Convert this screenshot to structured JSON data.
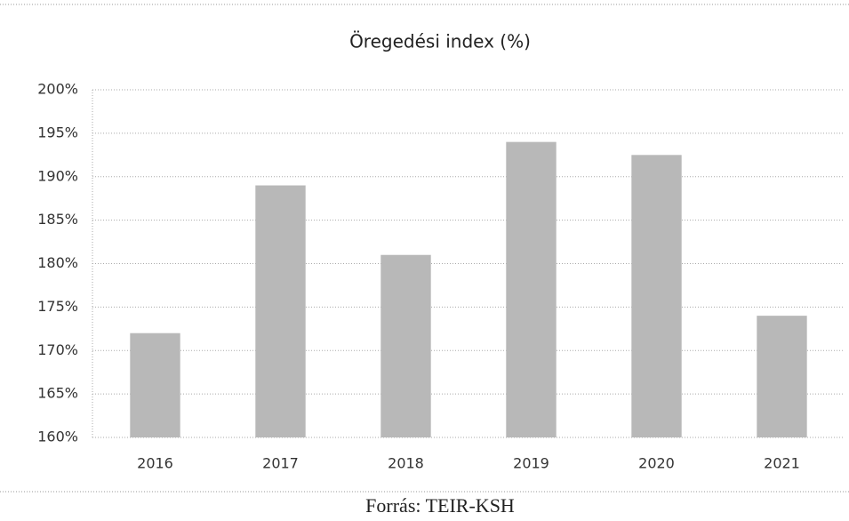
{
  "chart_data": {
    "type": "bar",
    "title": "Öregedési index (%)",
    "categories": [
      "2016",
      "2017",
      "2018",
      "2019",
      "2020",
      "2021"
    ],
    "values": [
      172,
      189,
      181,
      194,
      192.5,
      174
    ],
    "color": "#b8b8b8",
    "ylim": [
      160,
      200
    ],
    "yticks": [
      {
        "value": 160,
        "label": "160%"
      },
      {
        "value": 165,
        "label": "165%"
      },
      {
        "value": 170,
        "label": "170%"
      },
      {
        "value": 175,
        "label": "175%"
      },
      {
        "value": 180,
        "label": "180%"
      },
      {
        "value": 185,
        "label": "185%"
      },
      {
        "value": 190,
        "label": "190%"
      },
      {
        "value": 195,
        "label": "195%"
      },
      {
        "value": 200,
        "label": "200%"
      }
    ],
    "grid": true,
    "caption": "Forrás: TEIR-KSH"
  }
}
